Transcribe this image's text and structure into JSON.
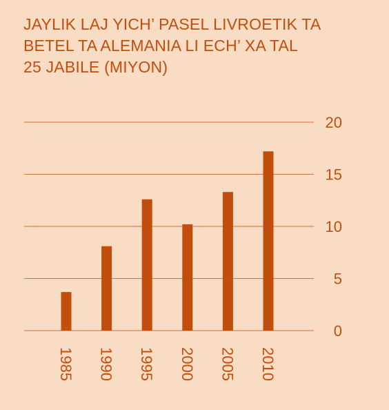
{
  "colors": {
    "background": "#f8dcc4",
    "accent": "#c24e0e",
    "gridline": "#c24e0e"
  },
  "title_lines": [
    "JAYLIK LAJ YICH’ PASEL LIVROETIK TA",
    "BETEL TA ALEMANIA LI ECH’ XA TAL",
    "25 JABILE (MIYON)"
  ],
  "chart_data": {
    "type": "bar",
    "title": "JAYLIK LAJ YICH’ PASEL LIVROETIK TA BETEL TA ALEMANIA LI ECH’ XA TAL 25 JABILE (MIYON)",
    "categories": [
      "1985",
      "1990",
      "1995",
      "2000",
      "2005",
      "2010"
    ],
    "values": [
      3.7,
      8.1,
      12.6,
      10.2,
      13.3,
      17.2
    ],
    "xlabel": "",
    "ylabel": "",
    "ylim": [
      0,
      20
    ],
    "yticks": [
      "0",
      "5",
      "10",
      "15",
      "20"
    ],
    "grid": true,
    "y_axis_position": "right"
  }
}
